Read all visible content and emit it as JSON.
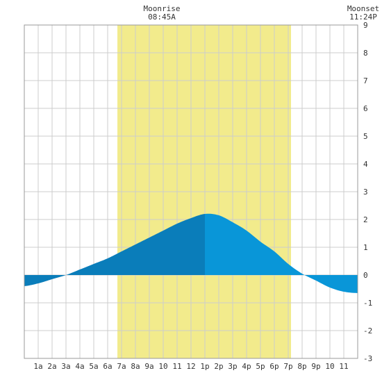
{
  "annotations": {
    "moonrise_label": "Moonrise",
    "moonrise_time": "08:45A",
    "moonset_label": "Moonset",
    "moonset_time": "11:24P"
  },
  "colors": {
    "background": "#ffffff",
    "grid": "#cccccc",
    "daylight_band": "#f2eb8c",
    "tide_rising": "#0a7dba",
    "tide_falling": "#0996d8",
    "axis_text": "#333333"
  },
  "chart_data": {
    "type": "area",
    "title": "",
    "xlabel": "",
    "ylabel": "",
    "x_tick_labels": [
      "1a",
      "2a",
      "3a",
      "4a",
      "5a",
      "6a",
      "7a",
      "8a",
      "9a",
      "10",
      "11",
      "12",
      "1p",
      "2p",
      "3p",
      "4p",
      "5p",
      "6p",
      "7p",
      "8p",
      "9p",
      "10",
      "11"
    ],
    "x_tick_hours": [
      1,
      2,
      3,
      4,
      5,
      6,
      7,
      8,
      9,
      10,
      11,
      12,
      13,
      14,
      15,
      16,
      17,
      18,
      19,
      20,
      21,
      22,
      23
    ],
    "xlim": [
      0,
      24
    ],
    "ylim": [
      -3,
      9
    ],
    "y_ticks": [
      -3,
      -2,
      -1,
      0,
      1,
      2,
      3,
      4,
      5,
      6,
      7,
      8,
      9
    ],
    "grid": true,
    "daylight_band_hours": [
      6.7,
      19.2
    ],
    "high_tide_hour": 13.0,
    "series": [
      {
        "x": [
          0,
          1,
          2,
          3,
          4,
          5,
          6,
          7,
          8,
          9,
          10,
          11,
          12,
          13,
          14,
          15,
          16,
          17,
          18,
          19,
          20,
          21,
          22,
          23,
          24
        ],
        "values": [
          -0.4,
          -0.3,
          -0.15,
          0.0,
          0.2,
          0.4,
          0.6,
          0.85,
          1.1,
          1.35,
          1.6,
          1.85,
          2.05,
          2.2,
          2.15,
          1.9,
          1.6,
          1.2,
          0.85,
          0.4,
          0.05,
          -0.2,
          -0.45,
          -0.6,
          -0.65
        ]
      }
    ]
  }
}
